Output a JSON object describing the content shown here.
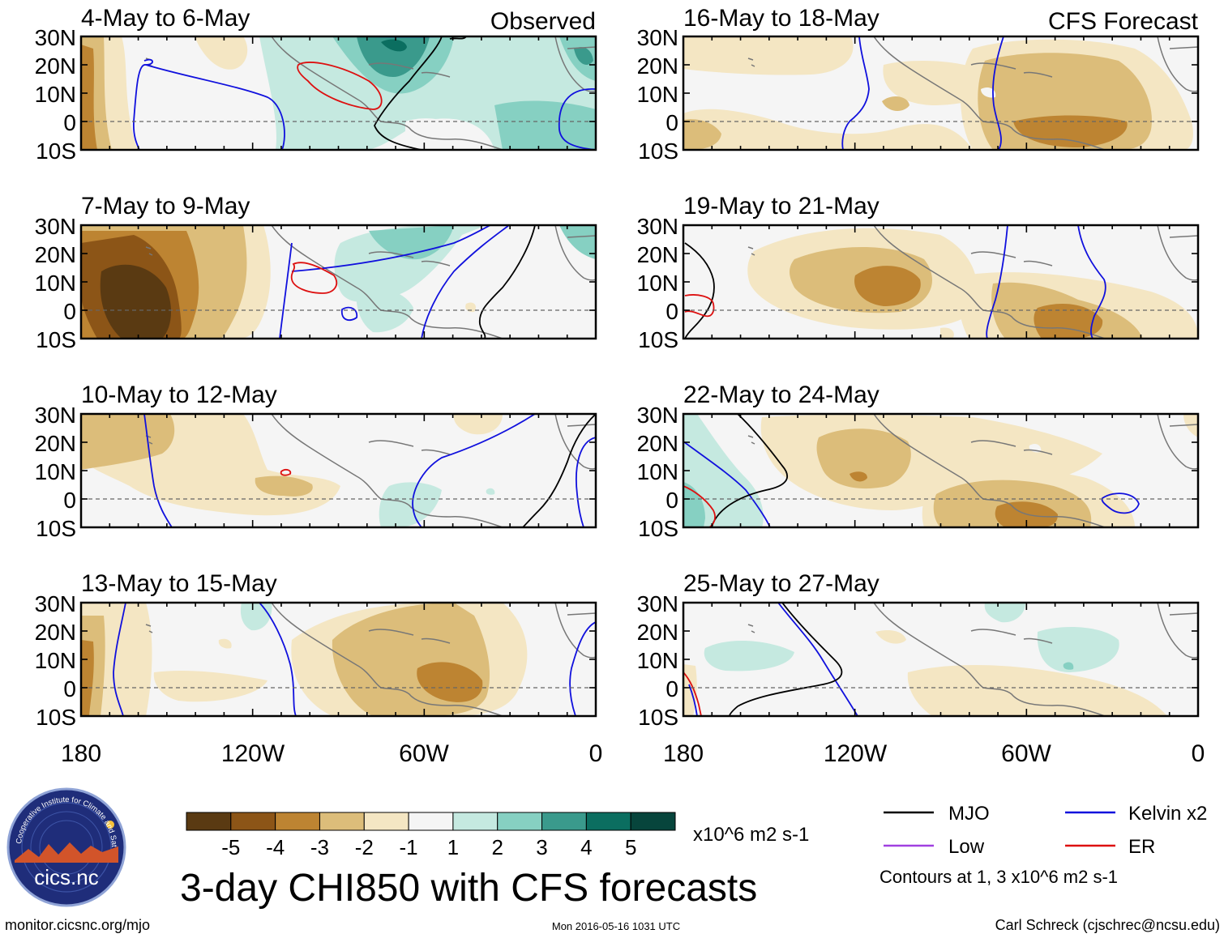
{
  "observed_label": "Observed",
  "forecast_label": "CFS Forecast",
  "panels_left": [
    {
      "title": "4-May to 6-May"
    },
    {
      "title": "7-May to 9-May"
    },
    {
      "title": "10-May to 12-May"
    },
    {
      "title": "13-May to 15-May"
    }
  ],
  "panels_right": [
    {
      "title": "16-May to 18-May"
    },
    {
      "title": "19-May to 21-May"
    },
    {
      "title": "22-May to 24-May"
    },
    {
      "title": "25-May to 27-May"
    }
  ],
  "lat_labels": [
    "30N",
    "20N",
    "10N",
    "0",
    "10S"
  ],
  "lon_labels": [
    "180",
    "120W",
    "60W",
    "0"
  ],
  "colorbar": {
    "colors": [
      "#5a3a12",
      "#8c5517",
      "#bd8432",
      "#dcbd7a",
      "#f4e6c3",
      "#f5f5f5",
      "#c5e9e0",
      "#86d0c2",
      "#3a9a8c",
      "#0b6e60",
      "#07453c"
    ],
    "tick_labels": [
      "-5",
      "-4",
      "-3",
      "-2",
      "-1",
      "1",
      "2",
      "3",
      "4",
      "5"
    ],
    "units": "x10^6 m2 s-1"
  },
  "title": "3-day CHI850 with CFS forecasts",
  "legend": {
    "items": [
      {
        "label": "MJO",
        "color": "#000000"
      },
      {
        "label": "Kelvin x2",
        "color": "#1010dd"
      },
      {
        "label": "Low",
        "color": "#a040e0"
      },
      {
        "label": "ER",
        "color": "#dd1010"
      }
    ],
    "note": "Contours at 1, 3 x10^6 m2 s-1"
  },
  "logo_text": "cics.nc",
  "logo_ring_text": "Cooperative Institute for Climate and Satellites",
  "footer": {
    "url": "monitor.cicsnc.org/mjo",
    "timestamp": "Mon 2016-05-16 1031 UTC",
    "author": "Carl Schreck (cjschrec@ncsu.edu)"
  }
}
